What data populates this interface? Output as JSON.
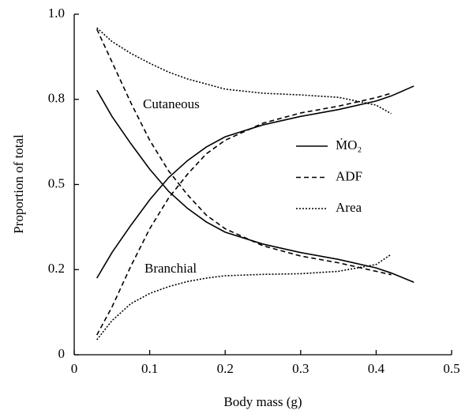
{
  "chart_data": {
    "type": "line",
    "xlabel": "Body mass (g)",
    "ylabel": "Proportion of total",
    "annotations": [
      "Cutaneous",
      "Branchial"
    ],
    "x": [
      0.03,
      0.05,
      0.075,
      0.1,
      0.125,
      0.15,
      0.175,
      0.2,
      0.25,
      0.3,
      0.35,
      0.4,
      0.42,
      0.45
    ],
    "xlim": [
      0,
      0.5
    ],
    "xticks": [
      0,
      0.1,
      0.2,
      0.3,
      0.4,
      0.5
    ],
    "ylim": [
      0,
      1
    ],
    "yticks": [
      0,
      {
        "value": 0.25,
        "label": "0.2"
      },
      0.5,
      {
        "value": 0.75,
        "label": "0.8"
      },
      {
        "value": 1,
        "label": "1.0"
      }
    ],
    "series": [
      {
        "name": "ṀO₂",
        "color": "#000000",
        "dash": "solid",
        "branchial": [
          0.777,
          0.7,
          0.62,
          0.545,
          0.48,
          0.43,
          0.39,
          0.36,
          0.325,
          0.3,
          0.28,
          0.255,
          0.24,
          0.213
        ],
        "cutaneous": [
          0.225,
          0.3,
          0.38,
          0.455,
          0.52,
          0.57,
          0.61,
          0.64,
          0.675,
          0.7,
          0.72,
          0.745,
          0.76,
          0.789
        ]
      },
      {
        "name": "ADF",
        "color": "#000000",
        "dash": "dashed",
        "branchial": [
          0.956,
          0.86,
          0.74,
          0.63,
          0.54,
          0.47,
          0.41,
          0.37,
          0.32,
          0.29,
          0.27,
          0.245,
          0.235,
          null
        ],
        "cutaneous": [
          0.058,
          0.14,
          0.26,
          0.37,
          0.46,
          0.53,
          0.59,
          0.63,
          0.68,
          0.71,
          0.73,
          0.755,
          0.768,
          null
        ]
      },
      {
        "name": "Area",
        "color": "#000000",
        "dash": "dotted",
        "branchial": [
          0.044,
          0.1,
          0.15,
          0.18,
          0.2,
          0.215,
          0.225,
          0.232,
          0.236,
          0.238,
          0.245,
          0.265,
          0.295,
          null
        ],
        "cutaneous": [
          0.96,
          0.92,
          0.885,
          0.856,
          0.83,
          0.81,
          0.795,
          0.78,
          0.768,
          0.763,
          0.756,
          0.733,
          0.708,
          null
        ]
      }
    ]
  }
}
